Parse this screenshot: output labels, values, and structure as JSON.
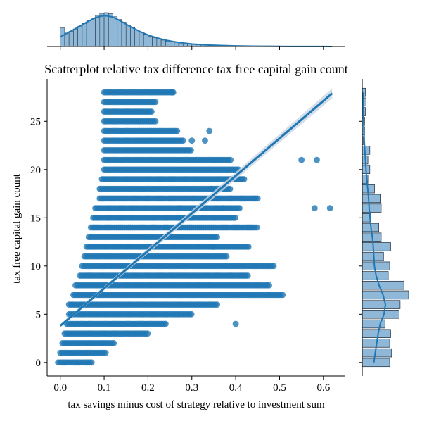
{
  "chart_data": {
    "type": "scatter",
    "title": "Scatterplot relative tax difference tax free capital gain count",
    "xlabel": "tax savings minus cost of strategy relative to investment sum",
    "ylabel": "tax free capital gain count",
    "xlim": [
      -0.03,
      0.65
    ],
    "ylim": [
      -1.4,
      29.4
    ],
    "x_ticks": [
      0.0,
      0.1,
      0.2,
      0.3,
      0.4,
      0.5,
      0.6
    ],
    "x_tick_labels": [
      "0.0",
      "0.1",
      "0.2",
      "0.3",
      "0.4",
      "0.5",
      "0.6"
    ],
    "y_ticks": [
      0,
      5,
      10,
      15,
      20,
      25
    ],
    "y_tick_labels": [
      "0",
      "5",
      "10",
      "15",
      "20",
      "25"
    ],
    "grid": false,
    "colors": {
      "points": "#1f77b4",
      "hist_fill": "#8fb8d8",
      "hist_edge": "#2b3a4a",
      "kde": "#1f77b4",
      "regression": "#1f77b4",
      "ci_band": "#c8d6e3"
    },
    "regression_line": {
      "x": [
        0.0,
        0.62
      ],
      "y": [
        3.8,
        27.9
      ]
    },
    "rows": [
      {
        "y": 0,
        "x_min": -0.005,
        "x_max": 0.075
      },
      {
        "y": 1,
        "x_min": 0.0,
        "x_max": 0.105
      },
      {
        "y": 2,
        "x_min": 0.005,
        "x_max": 0.125
      },
      {
        "y": 3,
        "x_min": 0.01,
        "x_max": 0.2
      },
      {
        "y": 4,
        "x_min": 0.015,
        "x_max": 0.24
      },
      {
        "y": 5,
        "x_min": 0.02,
        "x_max": 0.3
      },
      {
        "y": 6,
        "x_min": 0.02,
        "x_max": 0.36
      },
      {
        "y": 7,
        "x_min": 0.03,
        "x_max": 0.51
      },
      {
        "y": 8,
        "x_min": 0.035,
        "x_max": 0.48
      },
      {
        "y": 9,
        "x_min": 0.045,
        "x_max": 0.43
      },
      {
        "y": 10,
        "x_min": 0.05,
        "x_max": 0.49
      },
      {
        "y": 11,
        "x_min": 0.055,
        "x_max": 0.38
      },
      {
        "y": 12,
        "x_min": 0.06,
        "x_max": 0.43
      },
      {
        "y": 13,
        "x_min": 0.065,
        "x_max": 0.36
      },
      {
        "y": 14,
        "x_min": 0.07,
        "x_max": 0.45
      },
      {
        "y": 15,
        "x_min": 0.075,
        "x_max": 0.4
      },
      {
        "y": 16,
        "x_min": 0.08,
        "x_max": 0.41
      },
      {
        "y": 17,
        "x_min": 0.09,
        "x_max": 0.45
      },
      {
        "y": 18,
        "x_min": 0.09,
        "x_max": 0.39
      },
      {
        "y": 19,
        "x_min": 0.095,
        "x_max": 0.42
      },
      {
        "y": 20,
        "x_min": 0.1,
        "x_max": 0.41
      },
      {
        "y": 21,
        "x_min": 0.1,
        "x_max": 0.39
      },
      {
        "y": 22,
        "x_min": 0.1,
        "x_max": 0.3
      },
      {
        "y": 23,
        "x_min": 0.1,
        "x_max": 0.28
      },
      {
        "y": 24,
        "x_min": 0.1,
        "x_max": 0.27
      },
      {
        "y": 25,
        "x_min": 0.1,
        "x_max": 0.22
      },
      {
        "y": 26,
        "x_min": 0.1,
        "x_max": 0.21
      },
      {
        "y": 27,
        "x_min": 0.1,
        "x_max": 0.22
      },
      {
        "y": 28,
        "x_min": 0.1,
        "x_max": 0.26
      }
    ],
    "outliers": [
      {
        "x": 0.55,
        "y": 21
      },
      {
        "x": 0.585,
        "y": 21
      },
      {
        "x": 0.58,
        "y": 16
      },
      {
        "x": 0.615,
        "y": 16
      },
      {
        "x": 0.34,
        "y": 24
      },
      {
        "x": 0.4,
        "y": 4
      },
      {
        "x": 0.255,
        "y": 28
      },
      {
        "x": 0.3,
        "y": 23
      },
      {
        "x": 0.33,
        "y": 23
      },
      {
        "x": 0.345,
        "y": 18
      },
      {
        "x": 0.37,
        "y": 16
      },
      {
        "x": 0.35,
        "y": 12
      }
    ],
    "x_marginal": {
      "bin_edges": [
        0.0,
        0.01,
        0.02,
        0.03,
        0.04,
        0.05,
        0.06,
        0.07,
        0.08,
        0.09,
        0.1,
        0.11,
        0.12,
        0.13,
        0.14,
        0.15,
        0.16,
        0.17,
        0.18,
        0.19,
        0.2,
        0.21,
        0.22,
        0.23,
        0.24,
        0.25,
        0.26,
        0.27,
        0.28,
        0.29,
        0.3,
        0.31,
        0.32,
        0.33,
        0.34,
        0.35,
        0.36,
        0.37,
        0.38,
        0.39,
        0.4,
        0.41,
        0.42,
        0.43,
        0.44,
        0.45,
        0.46,
        0.47,
        0.48,
        0.49,
        0.5,
        0.51,
        0.52,
        0.53,
        0.54,
        0.55,
        0.56,
        0.57,
        0.58,
        0.59,
        0.6,
        0.61,
        0.62
      ],
      "counts": [
        0.55,
        0.4,
        0.45,
        0.52,
        0.6,
        0.68,
        0.76,
        0.84,
        0.92,
        0.98,
        1.0,
        0.97,
        0.88,
        0.8,
        0.72,
        0.64,
        0.56,
        0.49,
        0.42,
        0.36,
        0.3,
        0.26,
        0.22,
        0.19,
        0.16,
        0.14,
        0.12,
        0.1,
        0.085,
        0.07,
        0.06,
        0.05,
        0.045,
        0.04,
        0.035,
        0.03,
        0.025,
        0.02,
        0.018,
        0.015,
        0.013,
        0.011,
        0.01,
        0.009,
        0.008,
        0.007,
        0.006,
        0.005,
        0.005,
        0.004,
        0.004,
        0.003,
        0.003,
        0.003,
        0.002,
        0.002,
        0.002,
        0.002,
        0.001,
        0.001,
        0.001,
        0.001
      ],
      "kde_x": [
        0.0,
        0.02,
        0.04,
        0.06,
        0.08,
        0.1,
        0.12,
        0.14,
        0.16,
        0.18,
        0.2,
        0.22,
        0.24,
        0.26,
        0.28,
        0.3,
        0.32,
        0.34,
        0.36,
        0.38,
        0.4,
        0.44,
        0.48,
        0.52,
        0.56,
        0.6,
        0.62
      ],
      "kde_y": [
        0.3,
        0.45,
        0.6,
        0.76,
        0.9,
        0.97,
        0.92,
        0.78,
        0.62,
        0.48,
        0.36,
        0.27,
        0.2,
        0.15,
        0.11,
        0.08,
        0.06,
        0.045,
        0.035,
        0.027,
        0.02,
        0.012,
        0.007,
        0.004,
        0.003,
        0.002,
        0.001
      ]
    },
    "y_marginal": {
      "bins": [
        0,
        1,
        2,
        3,
        4,
        5,
        6,
        7,
        8,
        9,
        10,
        11,
        12,
        13,
        14,
        15,
        16,
        17,
        18,
        19,
        20,
        21,
        22,
        23,
        24,
        25,
        26,
        27,
        28
      ],
      "counts": [
        0.58,
        0.62,
        0.58,
        0.6,
        0.48,
        0.78,
        0.8,
        0.98,
        0.88,
        0.55,
        0.58,
        0.45,
        0.6,
        0.4,
        0.35,
        0.18,
        0.4,
        0.38,
        0.26,
        0.12,
        0.16,
        0.12,
        0.16,
        0.02,
        0.05,
        0.05,
        0.07,
        0.08,
        0.07
      ],
      "kde_y": [
        0,
        1,
        2,
        3,
        4,
        5,
        6,
        7,
        8,
        9,
        10,
        11,
        12,
        13,
        14,
        15,
        16,
        17,
        18,
        19,
        20,
        21,
        22,
        23,
        24,
        25,
        26,
        27,
        28
      ],
      "kde_x": [
        0.4,
        0.45,
        0.5,
        0.55,
        0.62,
        0.75,
        0.8,
        0.72,
        0.58,
        0.48,
        0.42,
        0.4,
        0.38,
        0.35,
        0.3,
        0.27,
        0.24,
        0.22,
        0.19,
        0.15,
        0.13,
        0.11,
        0.09,
        0.07,
        0.06,
        0.05,
        0.04,
        0.04,
        0.03
      ]
    }
  }
}
